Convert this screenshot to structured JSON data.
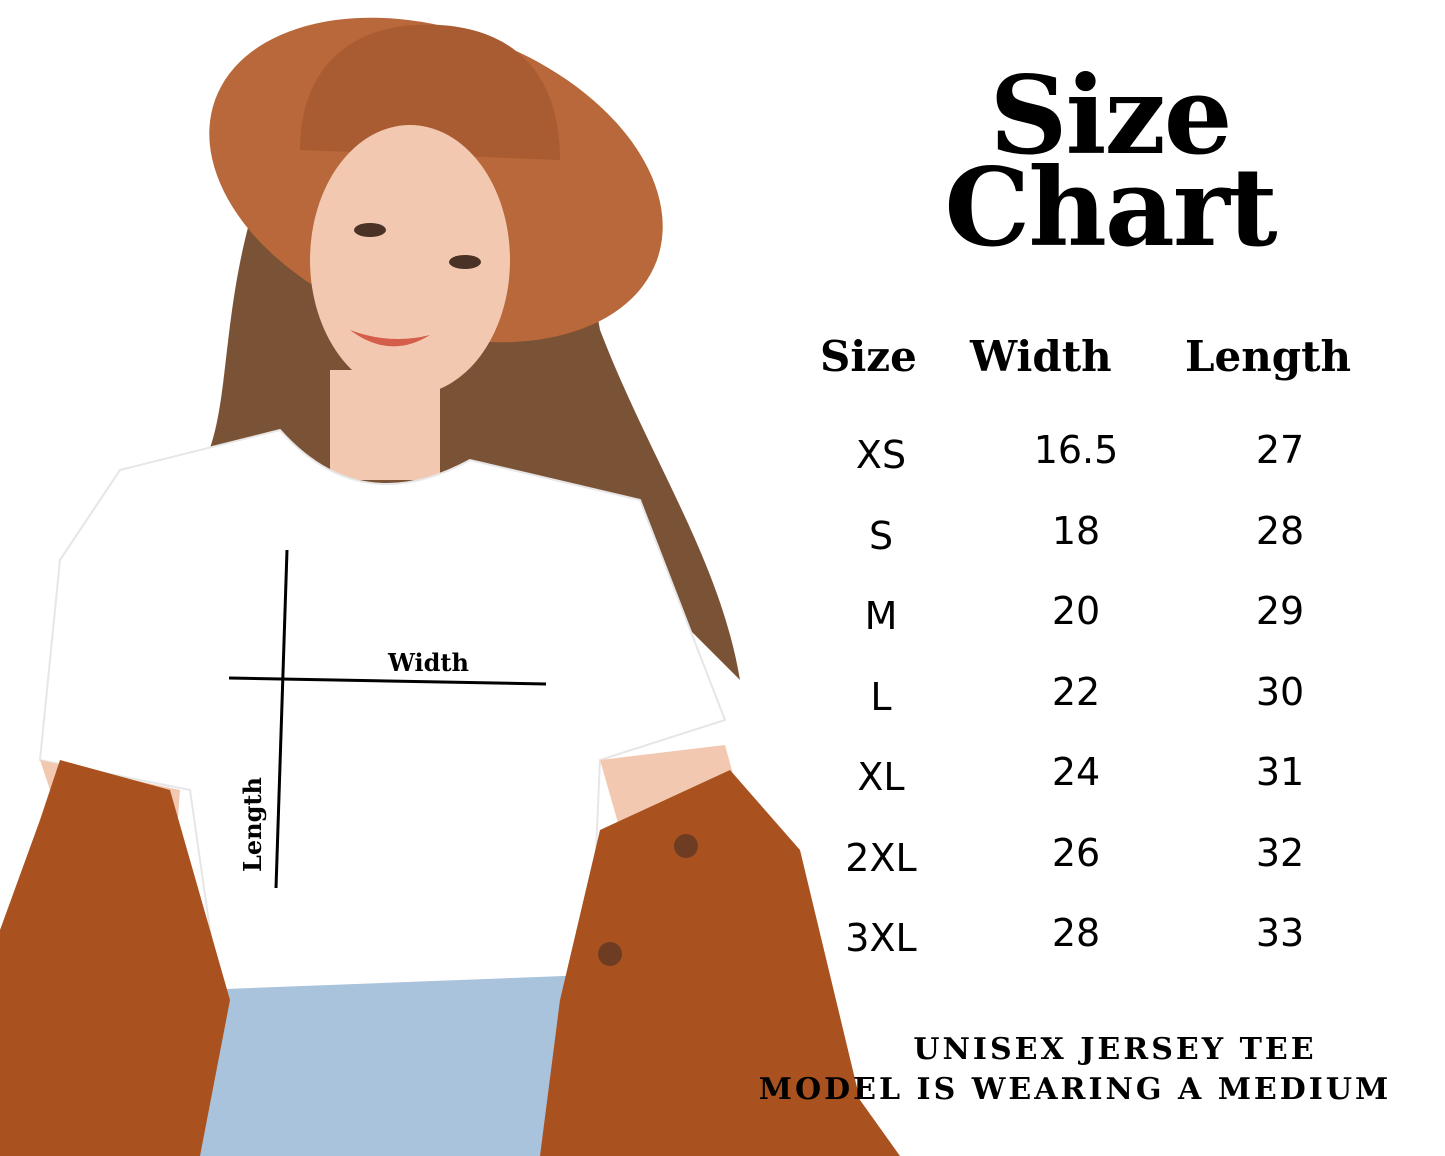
{
  "title_line1": "Size",
  "title_line2": "Chart",
  "table": {
    "headers": [
      "Size",
      "Width",
      "Length"
    ],
    "rows": [
      {
        "size": "XS",
        "width": "16.5",
        "length": "27"
      },
      {
        "size": "S",
        "width": "18",
        "length": "28"
      },
      {
        "size": "M",
        "width": "20",
        "length": "29"
      },
      {
        "size": "L",
        "width": "22",
        "length": "30"
      },
      {
        "size": "XL",
        "width": "24",
        "length": "31"
      },
      {
        "size": "2XL",
        "width": "26",
        "length": "32"
      },
      {
        "size": "3XL",
        "width": "28",
        "length": "33"
      }
    ]
  },
  "diagram": {
    "width_label": "Width",
    "length_label": "Length"
  },
  "footer": {
    "line1": "UNISEX JERSEY TEE",
    "line2": "MODEL IS WEARING A MEDIUM"
  },
  "colors": {
    "hat": "#b8683a",
    "jacket": "#a9521f",
    "shirt": "#ffffff",
    "jeans": "#a9c3dc",
    "hair": "#7a5236",
    "skin": "#f2c9b0"
  }
}
